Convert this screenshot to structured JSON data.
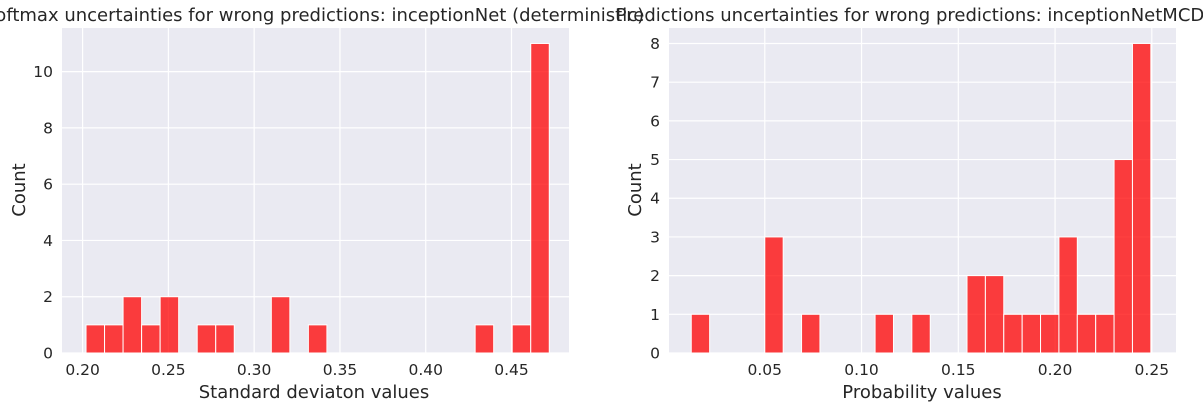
{
  "chart_data": [
    {
      "type": "bar",
      "title": "Softmax uncertainties for wrong predictions: inceptionNet (deterministic)",
      "xlabel": "Standard deviaton values",
      "ylabel": "Count",
      "xlim": [
        0.188,
        0.4835
      ],
      "ylim": [
        0,
        11.55
      ],
      "grid": true,
      "xticks": [
        0.2,
        0.25,
        0.3,
        0.35,
        0.4,
        0.45
      ],
      "xtick_labels": [
        "0.20",
        "0.25",
        "0.30",
        "0.35",
        "0.40",
        "0.45"
      ],
      "yticks": [
        0,
        2,
        4,
        6,
        8,
        10
      ],
      "ytick_labels": [
        "0",
        "2",
        "4",
        "6",
        "8",
        "10"
      ],
      "bin_width": 0.0108,
      "bins": [
        {
          "x": 0.202,
          "count": 1
        },
        {
          "x": 0.2128,
          "count": 1
        },
        {
          "x": 0.2236,
          "count": 2
        },
        {
          "x": 0.2344,
          "count": 1
        },
        {
          "x": 0.2452,
          "count": 2
        },
        {
          "x": 0.2668,
          "count": 1
        },
        {
          "x": 0.2776,
          "count": 1
        },
        {
          "x": 0.31,
          "count": 2
        },
        {
          "x": 0.3316,
          "count": 1
        },
        {
          "x": 0.4288,
          "count": 1
        },
        {
          "x": 0.4504,
          "count": 1
        },
        {
          "x": 0.4612,
          "count": 11
        }
      ],
      "bar_color": "#ff0000"
    },
    {
      "type": "bar",
      "title": "Predictions uncertainties for wrong predictions: inceptionNetMCD",
      "xlabel": "Probability values",
      "ylabel": "Count",
      "xlim": [
        0.0005,
        0.2625
      ],
      "ylim": [
        0,
        8.4
      ],
      "grid": true,
      "xticks": [
        0.05,
        0.1,
        0.15,
        0.2,
        0.25
      ],
      "xtick_labels": [
        "0.05",
        "0.10",
        "0.15",
        "0.20",
        "0.25"
      ],
      "yticks": [
        0,
        1,
        2,
        3,
        4,
        5,
        6,
        7,
        8
      ],
      "ytick_labels": [
        "0",
        "1",
        "2",
        "3",
        "4",
        "5",
        "6",
        "7",
        "8"
      ],
      "bin_width": 0.0095,
      "bins": [
        {
          "x": 0.012,
          "count": 1
        },
        {
          "x": 0.05,
          "count": 3
        },
        {
          "x": 0.069,
          "count": 1
        },
        {
          "x": 0.107,
          "count": 1
        },
        {
          "x": 0.126,
          "count": 1
        },
        {
          "x": 0.1545,
          "count": 2
        },
        {
          "x": 0.164,
          "count": 2
        },
        {
          "x": 0.1735,
          "count": 1
        },
        {
          "x": 0.183,
          "count": 1
        },
        {
          "x": 0.1925,
          "count": 1
        },
        {
          "x": 0.202,
          "count": 3
        },
        {
          "x": 0.2115,
          "count": 1
        },
        {
          "x": 0.221,
          "count": 1
        },
        {
          "x": 0.2305,
          "count": 5
        },
        {
          "x": 0.24,
          "count": 8
        }
      ],
      "bar_color": "#ff0000"
    }
  ]
}
